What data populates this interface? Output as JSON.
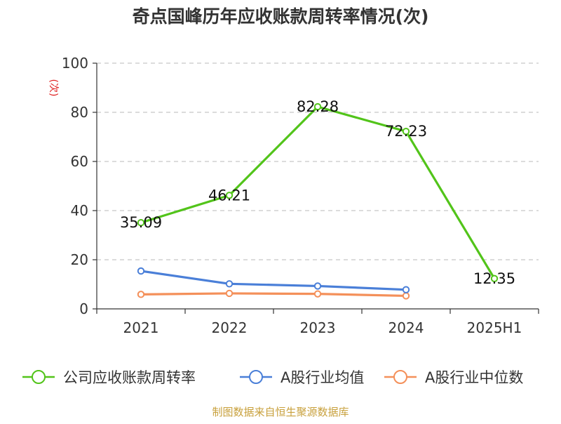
{
  "chart_data": {
    "type": "line",
    "title": "奇点国峰历年应收账款周转率情况(次)",
    "ylabel": "(次)",
    "xlabel": "",
    "categories": [
      "2021",
      "2022",
      "2023",
      "2024",
      "2025H1"
    ],
    "ylim": [
      0,
      100
    ],
    "yticks": [
      0,
      20,
      40,
      60,
      80,
      100
    ],
    "grid": true,
    "legend_position": "bottom",
    "series": [
      {
        "name": "公司应收账款周转率",
        "color": "#52c41a",
        "values": [
          35.09,
          46.21,
          82.28,
          72.23,
          12.35
        ],
        "labels": [
          "35.09",
          "46.21",
          "82.28",
          "72.23",
          "12.35"
        ],
        "show_labels": true
      },
      {
        "name": "A股行业均值",
        "color": "#4a7fd8",
        "values": [
          15.4,
          10.2,
          9.3,
          7.8,
          null
        ],
        "show_labels": false
      },
      {
        "name": "A股行业中位数",
        "color": "#f4905a",
        "values": [
          5.9,
          6.3,
          6.1,
          5.3,
          null
        ],
        "show_labels": false
      }
    ]
  },
  "source": "制图数据来自恒生聚源数据库"
}
